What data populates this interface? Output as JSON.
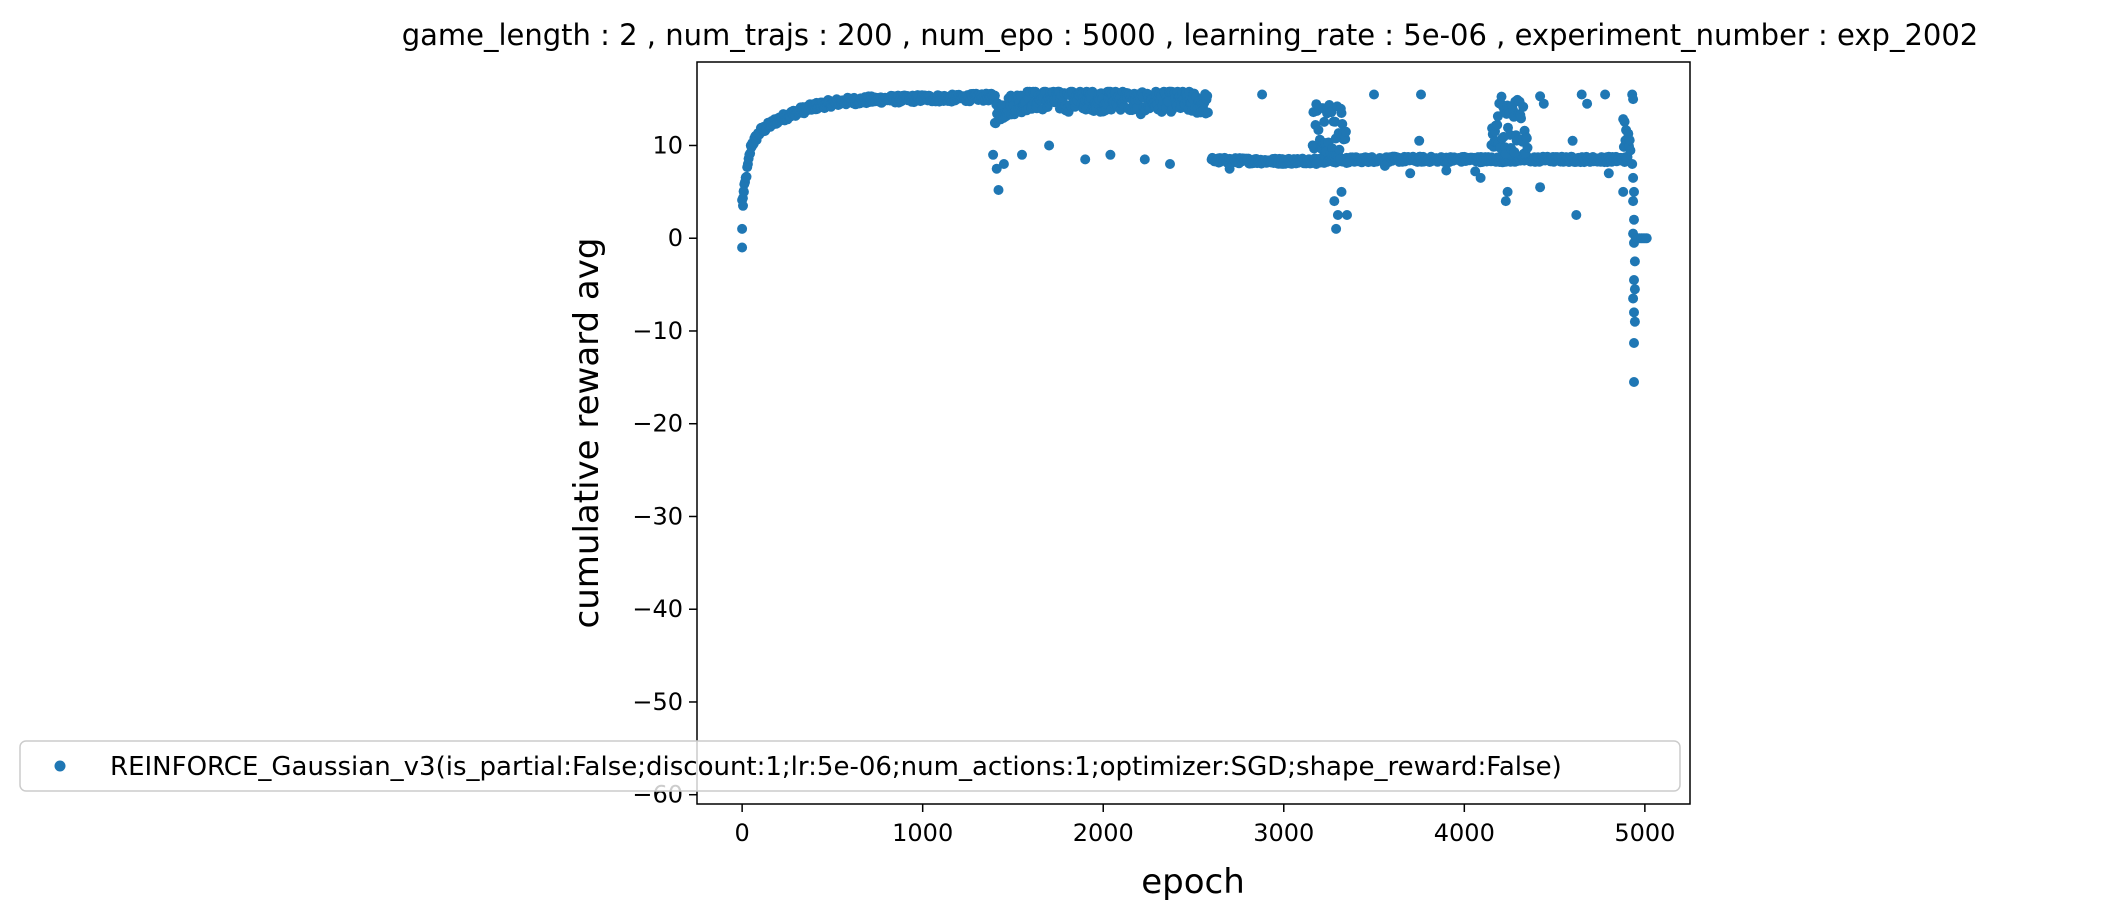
{
  "chart_data": {
    "type": "scatter",
    "title": "game_length : 2 , num_trajs : 200 , num_epo : 5000 , learning_rate : 5e-06 , experiment_number : exp_2002",
    "xlabel": "epoch",
    "ylabel": "cumulative reward avg",
    "xlim": [
      -250,
      5250
    ],
    "ylim": [
      -61,
      19
    ],
    "xticks": [
      0,
      1000,
      2000,
      3000,
      4000,
      5000
    ],
    "yticks": [
      -60,
      -50,
      -40,
      -30,
      -20,
      -10,
      0,
      10
    ],
    "xtick_labels": [
      "0",
      "1000",
      "2000",
      "3000",
      "4000",
      "5000"
    ],
    "ytick_labels": [
      "−60",
      "−50",
      "−40",
      "−30",
      "−20",
      "−10",
      "0",
      "10"
    ],
    "grid": false,
    "legend_position": "lower-left",
    "series": [
      {
        "name": "REINFORCE_Gaussian_v3(is_partial:False;discount:1;lr:5e-06;num_actions:1;optimizer:SGD;shape_reward:False)",
        "color": "#1f77b4",
        "marker": "circle",
        "segments": [
          {
            "x": [
              0,
              50,
              100,
              200,
              300,
              400,
              500,
              600,
              700,
              800,
              900,
              1000,
              1100,
              1200,
              1300,
              1400
            ],
            "y": [
              4,
              10,
              11.5,
              12.8,
              13.6,
              14.2,
              14.6,
              14.8,
              14.9,
              15.0,
              15.0,
              15.1,
              15.1,
              15.1,
              15.2,
              15.2
            ],
            "spread": 0.4
          },
          {
            "x": [
              1400,
              1500,
              1600,
              1700,
              1800,
              1900,
              2000,
              2100,
              2200,
              2300,
              2400,
              2500,
              2580
            ],
            "y": [
              13.5,
              14.5,
              15.0,
              15.0,
              14.8,
              15.0,
              14.8,
              15.0,
              14.5,
              14.8,
              14.8,
              14.6,
              14.5
            ],
            "spread": 1.2
          },
          {
            "x": [
              2600,
              3000,
              3200,
              3500,
              3800,
              4100,
              4500,
              4800,
              4900
            ],
            "y": [
              8.4,
              8.3,
              8.4,
              8.5,
              8.5,
              8.5,
              8.5,
              8.5,
              8.5
            ],
            "spread": 0.3
          },
          {
            "x": [
              3160,
              3200,
              3250,
              3300,
              3350
            ],
            "y": [
              11.5,
              12.5,
              12.0,
              11.5,
              11.0
            ],
            "spread": 3.0
          },
          {
            "x": [
              4150,
              4200,
              4250,
              4300,
              4350
            ],
            "y": [
              12.0,
              12.5,
              11.5,
              12.0,
              11.0
            ],
            "spread": 3.0
          },
          {
            "x": [
              4880,
              4900,
              4920
            ],
            "y": [
              12.0,
              11.0,
              10.0
            ],
            "spread": 2.5
          }
        ],
        "outliers": [
          {
            "x": 0,
            "y": -1.0
          },
          {
            "x": 0,
            "y": 1.0
          },
          {
            "x": 5,
            "y": 3.5
          },
          {
            "x": 10,
            "y": 5.0
          },
          {
            "x": 1420,
            "y": 5.2
          },
          {
            "x": 1410,
            "y": 7.5
          },
          {
            "x": 1450,
            "y": 8.0
          },
          {
            "x": 1390,
            "y": 9.0
          },
          {
            "x": 1550,
            "y": 9.0
          },
          {
            "x": 1700,
            "y": 10.0
          },
          {
            "x": 1900,
            "y": 8.5
          },
          {
            "x": 2040,
            "y": 9.0
          },
          {
            "x": 2230,
            "y": 8.5
          },
          {
            "x": 2370,
            "y": 8.0
          },
          {
            "x": 2880,
            "y": 15.5
          },
          {
            "x": 2700,
            "y": 7.5
          },
          {
            "x": 3180,
            "y": 8.0
          },
          {
            "x": 3290,
            "y": 1.0
          },
          {
            "x": 3300,
            "y": 2.5
          },
          {
            "x": 3350,
            "y": 2.5
          },
          {
            "x": 3280,
            "y": 4.0
          },
          {
            "x": 3320,
            "y": 5.0
          },
          {
            "x": 3500,
            "y": 15.5
          },
          {
            "x": 3560,
            "y": 7.8
          },
          {
            "x": 3700,
            "y": 7.0
          },
          {
            "x": 3760,
            "y": 15.5
          },
          {
            "x": 3750,
            "y": 10.5
          },
          {
            "x": 3900,
            "y": 7.3
          },
          {
            "x": 4060,
            "y": 7.2
          },
          {
            "x": 4090,
            "y": 6.5
          },
          {
            "x": 4230,
            "y": 4.0
          },
          {
            "x": 4240,
            "y": 5.0
          },
          {
            "x": 4420,
            "y": 15.3
          },
          {
            "x": 4440,
            "y": 14.5
          },
          {
            "x": 4420,
            "y": 5.5
          },
          {
            "x": 4600,
            "y": 10.5
          },
          {
            "x": 4620,
            "y": 2.5
          },
          {
            "x": 4650,
            "y": 15.5
          },
          {
            "x": 4680,
            "y": 14.5
          },
          {
            "x": 4780,
            "y": 15.5
          },
          {
            "x": 4800,
            "y": 7.0
          },
          {
            "x": 4880,
            "y": 5.0
          },
          {
            "x": 4930,
            "y": 15.5
          },
          {
            "x": 4935,
            "y": 15.0
          },
          {
            "x": 4930,
            "y": 8.0
          },
          {
            "x": 4935,
            "y": 6.5
          },
          {
            "x": 4940,
            "y": 5.0
          },
          {
            "x": 4935,
            "y": 4.0
          },
          {
            "x": 4940,
            "y": 2.0
          },
          {
            "x": 4935,
            "y": 0.5
          },
          {
            "x": 4940,
            "y": -0.5
          },
          {
            "x": 4945,
            "y": -2.5
          },
          {
            "x": 4940,
            "y": -4.5
          },
          {
            "x": 4945,
            "y": -5.5
          },
          {
            "x": 4935,
            "y": -6.5
          },
          {
            "x": 4940,
            "y": -8.0
          },
          {
            "x": 4945,
            "y": -9.0
          },
          {
            "x": 4940,
            "y": -11.3
          },
          {
            "x": 4940,
            "y": -15.5
          },
          {
            "x": 4950,
            "y": 0.0
          },
          {
            "x": 4960,
            "y": 0.0
          },
          {
            "x": 4970,
            "y": 0.0
          },
          {
            "x": 4980,
            "y": 0.0
          },
          {
            "x": 4990,
            "y": 0.0
          },
          {
            "x": 5000,
            "y": 0.0
          },
          {
            "x": 5010,
            "y": 0.0
          }
        ]
      }
    ]
  }
}
